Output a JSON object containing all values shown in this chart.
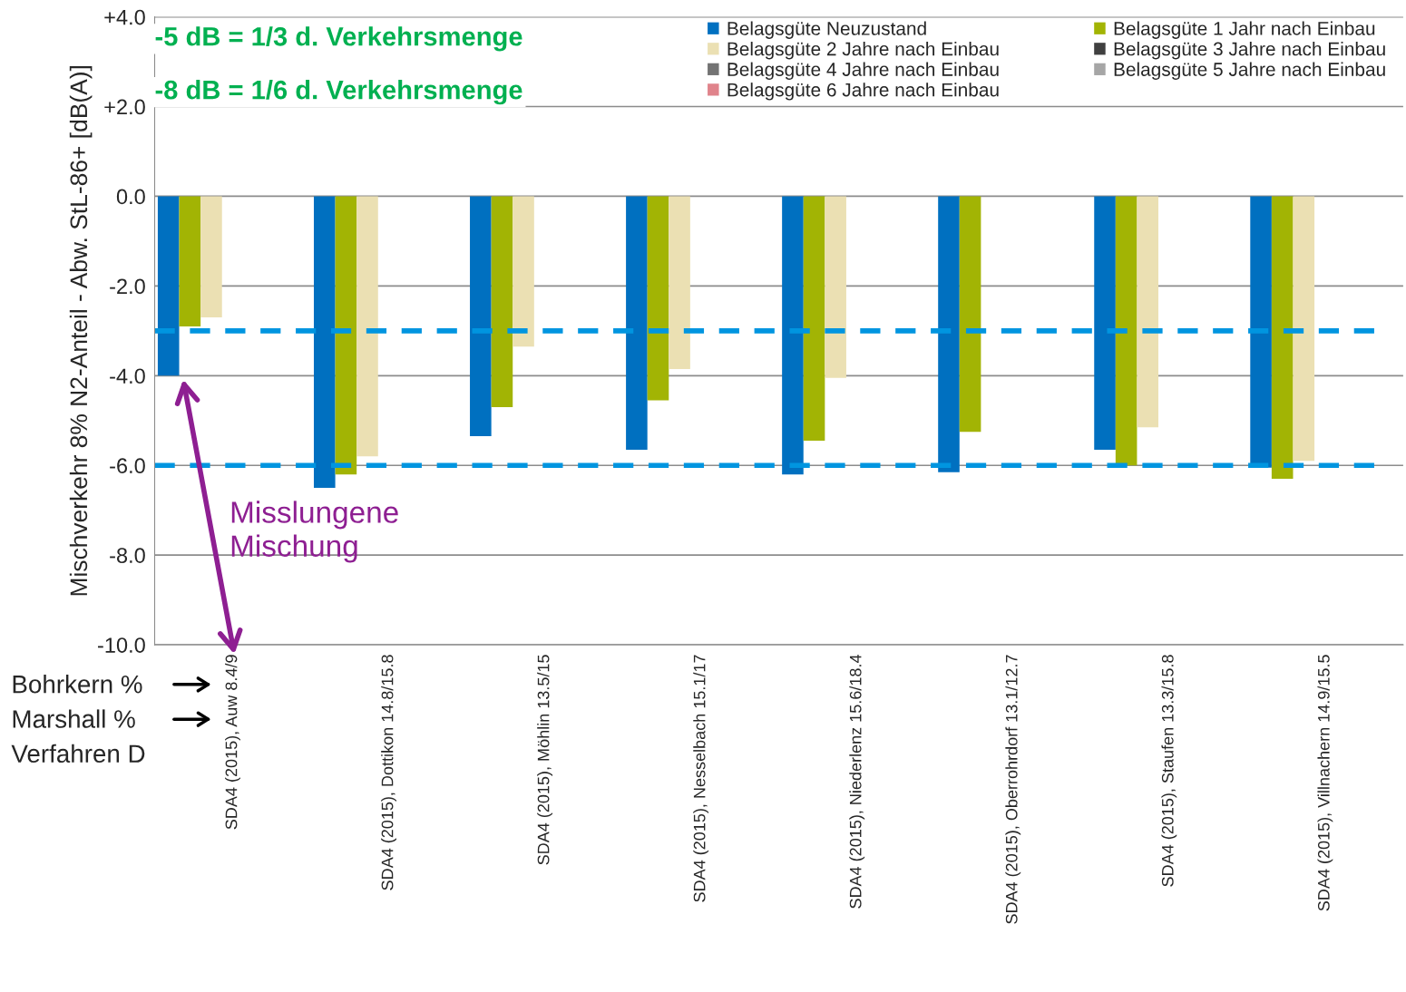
{
  "chart_data": {
    "type": "bar",
    "ylabel": "Mischverkehr 8% N2-Anteil - Abw. StL-86+ [dB(A)]",
    "categories": [
      "SDA4 (2015), Auw 8.4/9",
      "SDA4 (2015), Dottikon 14.8/15.8",
      "SDA4 (2015), Möhlin 13.5/15",
      "SDA4 (2015), Nesselbach 15.1/17",
      "SDA4 (2015), Niederlenz 15.6/18.4",
      "SDA4 (2015), Oberrohrdorf 13.1/12.7",
      "SDA4 (2015), Staufen 13.3/15.8",
      "SDA4 (2015), Villnachern 14.9/15.5"
    ],
    "series": [
      {
        "name": "Belagsgüte Neuzustand",
        "color": "#0070c0",
        "values": [
          -4.0,
          -6.5,
          -5.35,
          -5.65,
          -6.2,
          -6.15,
          -5.65,
          -6.05
        ]
      },
      {
        "name": "Belagsgüte 1 Jahr nach Einbau",
        "color": "#a2b404",
        "values": [
          -2.9,
          -6.2,
          -4.7,
          -4.55,
          -5.45,
          -5.25,
          -6.0,
          -6.3
        ]
      },
      {
        "name": "Belagsgüte 2 Jahre nach Einbau",
        "color": "#ebe0b3",
        "values": [
          -2.7,
          -5.8,
          -3.35,
          -3.85,
          -4.05,
          null,
          -5.15,
          -5.9
        ]
      },
      {
        "name": "Belagsgüte 3 Jahre nach Einbau",
        "color": "#404040",
        "values": [
          null,
          null,
          null,
          null,
          null,
          null,
          null,
          null
        ]
      },
      {
        "name": "Belagsgüte 4 Jahre nach Einbau",
        "color": "#737373",
        "values": [
          null,
          null,
          null,
          null,
          null,
          null,
          null,
          null
        ]
      },
      {
        "name": "Belagsgüte 5 Jahre nach Einbau",
        "color": "#a6a6a6",
        "values": [
          null,
          null,
          null,
          null,
          null,
          null,
          null,
          null
        ]
      },
      {
        "name": "Belagsgüte 6 Jahre nach Einbau",
        "color": "#e0838b",
        "values": [
          null,
          null,
          null,
          null,
          null,
          null,
          null,
          null
        ]
      }
    ],
    "ylim": [
      -10,
      4
    ],
    "yticks": [
      {
        "value": 4,
        "label": "+4.0"
      },
      {
        "value": 2,
        "label": "+2.0"
      },
      {
        "value": 0,
        "label": "0.0"
      },
      {
        "value": -2,
        "label": "-2.0"
      },
      {
        "value": -4,
        "label": "-4.0"
      },
      {
        "value": -6,
        "label": "-6.0"
      },
      {
        "value": -8,
        "label": "-8.0"
      },
      {
        "value": -10,
        "label": "-10.0"
      }
    ],
    "grid": "y",
    "legend": "top right",
    "ref_lines": [
      {
        "axis": "y",
        "value": -3.0,
        "color": "#0095e0",
        "line_style": "dashed"
      },
      {
        "axis": "y",
        "value": -6.0,
        "color": "#0095e0",
        "line_style": "dashed"
      }
    ],
    "annotations": [
      "-5 dB = 1/3 d. Verkehrsmenge",
      "-8 dB = 1/6 d. Verkehrsmenge",
      "Misslungene\nMischung",
      "Bohrkern %",
      "Marshall %",
      "Verfahren D"
    ]
  }
}
